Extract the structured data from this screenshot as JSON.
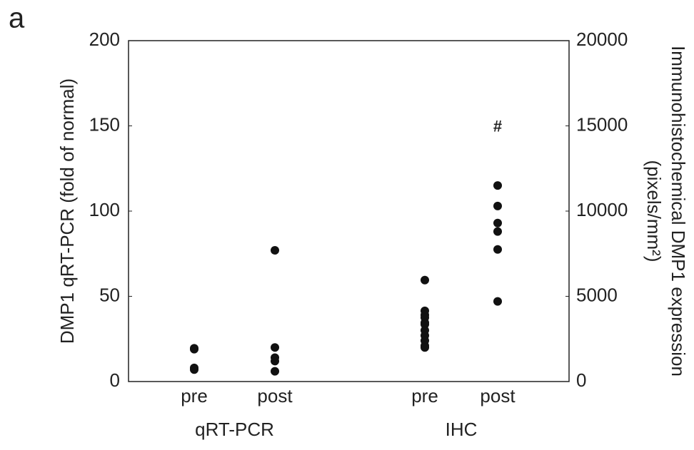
{
  "chart_data": {
    "type": "dot",
    "panel_label": "a",
    "ylabel": "DMP1 qRT-PCR (fold of normal)",
    "y2label": [
      "Immunohistochemical DMP1 expression",
      "(pixels/mm²)"
    ],
    "ylim": [
      0,
      200
    ],
    "yticks": [
      0,
      50,
      100,
      150,
      200
    ],
    "y2lim": [
      0,
      20000
    ],
    "y2ticks": [
      0,
      5000,
      10000,
      15000,
      20000
    ],
    "color": "#111111",
    "groups": [
      {
        "label": "qRT-PCR",
        "axis": "y",
        "categories": [
          "pre",
          "post"
        ],
        "values": [
          [
            19.5,
            19,
            8,
            7
          ],
          [
            77,
            20,
            14,
            12,
            6
          ]
        ]
      },
      {
        "label": "IHC",
        "axis": "y2",
        "categories": [
          "pre",
          "post"
        ],
        "values": [
          [
            5950,
            4150,
            3900,
            3750,
            3450,
            3350,
            3000,
            2700,
            2400,
            2100,
            2000
          ],
          [
            11500,
            10300,
            9300,
            8800,
            7750,
            4700
          ]
        ]
      }
    ],
    "annotations": [
      {
        "text": "#",
        "group": 1,
        "category": 1,
        "value": 14900
      }
    ]
  }
}
